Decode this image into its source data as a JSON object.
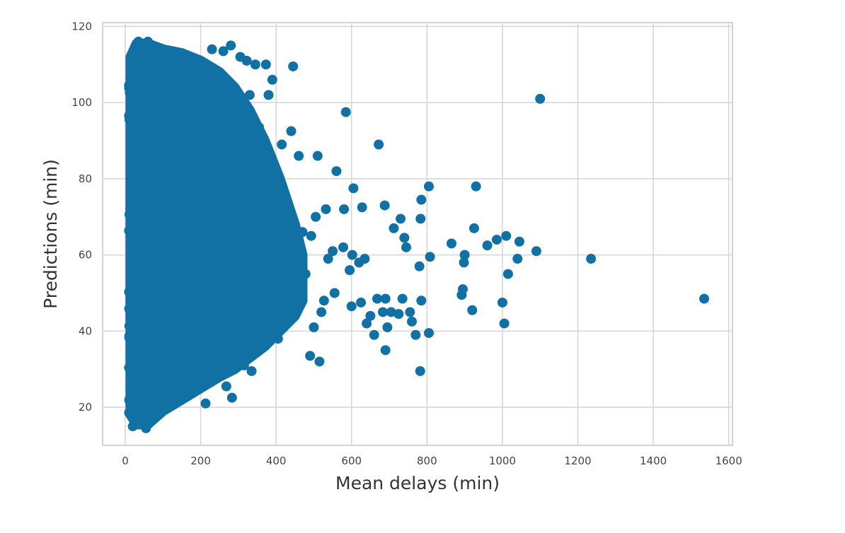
{
  "chart_data": {
    "type": "scatter",
    "title": "",
    "xlabel": "Mean delays (min)",
    "ylabel": "Predictions (min)",
    "xlim": [
      -60,
      1610
    ],
    "ylim": [
      10,
      121
    ],
    "xticks": [
      0,
      200,
      400,
      600,
      800,
      1000,
      1200,
      1400,
      1600
    ],
    "yticks": [
      20,
      40,
      60,
      80,
      100,
      120
    ],
    "grid": true,
    "legend": "none",
    "colors": {
      "point": "#1170a4",
      "grid": "#d4d4d4",
      "frame": "#d4d4d4",
      "background": "#ffffff"
    },
    "series": [
      {
        "points": [
          [
            1100,
            101
          ],
          [
            1235,
            59
          ],
          [
            1535,
            48.5
          ],
          [
            1090,
            61
          ],
          [
            1045,
            63.5
          ],
          [
            1040,
            59
          ],
          [
            1010,
            65
          ],
          [
            1015,
            55
          ],
          [
            1005,
            42
          ],
          [
            1000,
            47.5
          ],
          [
            985,
            64
          ],
          [
            960,
            62.5
          ],
          [
            930,
            78
          ],
          [
            925,
            67
          ],
          [
            920,
            45.5
          ],
          [
            900,
            60
          ],
          [
            898,
            58
          ],
          [
            895,
            51
          ],
          [
            892,
            49.5
          ],
          [
            865,
            63
          ],
          [
            805,
            78
          ],
          [
            808,
            59.5
          ],
          [
            805,
            39.5
          ],
          [
            785,
            74.5
          ],
          [
            783,
            69.5
          ],
          [
            780,
            57
          ],
          [
            782,
            29.5
          ],
          [
            785,
            48
          ],
          [
            770,
            39
          ],
          [
            760,
            42.5
          ],
          [
            755,
            45
          ],
          [
            745,
            62
          ],
          [
            740,
            64.5
          ],
          [
            735,
            48.5
          ],
          [
            730,
            69.5
          ],
          [
            725,
            44.5
          ],
          [
            712,
            67
          ],
          [
            705,
            45
          ],
          [
            695,
            41
          ],
          [
            690,
            35
          ],
          [
            690,
            48.5
          ],
          [
            688,
            73
          ],
          [
            683,
            45
          ],
          [
            672,
            89
          ],
          [
            668,
            48.5
          ],
          [
            660,
            39
          ],
          [
            650,
            44
          ],
          [
            640,
            42
          ],
          [
            635,
            59
          ],
          [
            628,
            72.5
          ],
          [
            625,
            47.5
          ],
          [
            620,
            58
          ],
          [
            605,
            77.5
          ],
          [
            602,
            60
          ],
          [
            600,
            46.5
          ],
          [
            595,
            56
          ],
          [
            585,
            97.5
          ],
          [
            580,
            72
          ],
          [
            578,
            62
          ],
          [
            560,
            82
          ],
          [
            555,
            50
          ],
          [
            550,
            61
          ],
          [
            538,
            59
          ],
          [
            532,
            72
          ],
          [
            527,
            48
          ],
          [
            520,
            45
          ],
          [
            515,
            32
          ],
          [
            510,
            86
          ],
          [
            505,
            70
          ],
          [
            500,
            41
          ],
          [
            493,
            65
          ],
          [
            490,
            33.5
          ],
          [
            478,
            55
          ],
          [
            470,
            66
          ],
          [
            460,
            86
          ],
          [
            452,
            48
          ],
          [
            445,
            109.5
          ],
          [
            440,
            92.5
          ],
          [
            432,
            67.5
          ],
          [
            420,
            48
          ],
          [
            415,
            89
          ],
          [
            405,
            38
          ],
          [
            402,
            64
          ],
          [
            390,
            106
          ],
          [
            385,
            46
          ],
          [
            380,
            102
          ],
          [
            375,
            80
          ],
          [
            373,
            110
          ],
          [
            370,
            36
          ],
          [
            355,
            93.5
          ],
          [
            345,
            110
          ],
          [
            340,
            38
          ],
          [
            335,
            29.5
          ],
          [
            330,
            102
          ],
          [
            322,
            111
          ],
          [
            315,
            31
          ],
          [
            305,
            112
          ],
          [
            283,
            22.5
          ],
          [
            280,
            115
          ],
          [
            268,
            25.5
          ],
          [
            260,
            113.5
          ],
          [
            245,
            29
          ],
          [
            230,
            114
          ],
          [
            213,
            21
          ],
          [
            200,
            28
          ],
          [
            160,
            23.5
          ],
          [
            120,
            20.5
          ],
          [
            100,
            23.5
          ],
          [
            80,
            114.5
          ],
          [
            60,
            116
          ],
          [
            55,
            14.5
          ],
          [
            35,
            116
          ],
          [
            20,
            15
          ],
          [
            18,
            112
          ],
          [
            15,
            103
          ],
          [
            15,
            20
          ]
        ]
      }
    ]
  }
}
